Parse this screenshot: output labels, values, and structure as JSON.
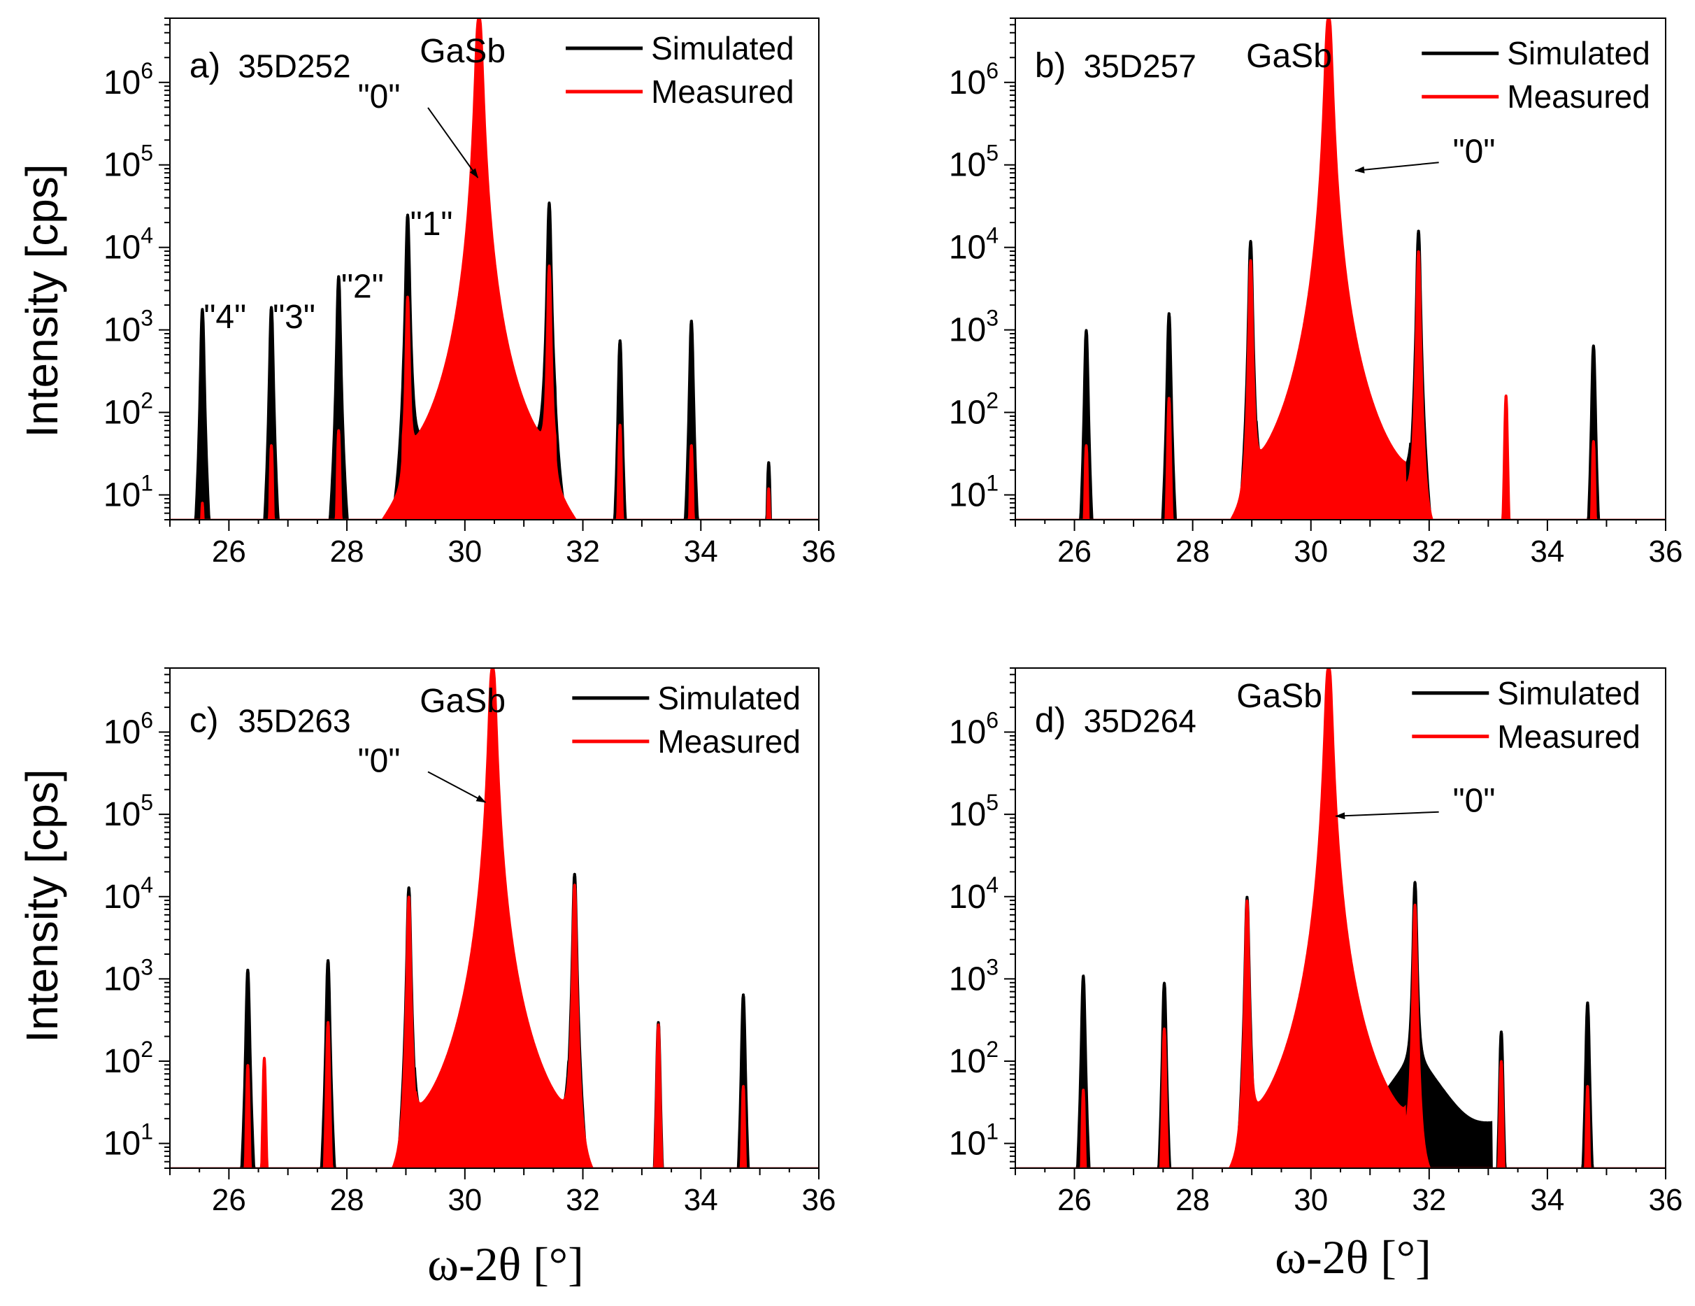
{
  "figure": {
    "ylabel": "Intensity [cps]",
    "xlabel": "ω-2θ [°]"
  },
  "colors": {
    "simulated": "#000000",
    "measured": "#ff0000"
  },
  "chart_data": [
    {
      "type": "line",
      "panel_label": "a)",
      "sample": "35D252",
      "substrate_label": "GaSb",
      "xlim": [
        25,
        36
      ],
      "ylim": [
        5,
        6000000
      ],
      "yscale": "log",
      "xticks": [
        26,
        28,
        30,
        32,
        34,
        36
      ],
      "yticks": [
        10,
        100,
        1000,
        10000,
        100000,
        1000000
      ],
      "legend": {
        "position": "top-right",
        "entries": [
          "Simulated",
          "Measured"
        ]
      },
      "baseline": 35,
      "arrow": {
        "text": "\"0\"",
        "from": [
          28.9,
          600000
        ],
        "to": [
          30.22,
          70000
        ]
      },
      "annotations": [
        {
          "text": "\"4\"",
          "x": 25.55,
          "y": 1500
        },
        {
          "text": "\"3\"",
          "x": 26.72,
          "y": 1500
        },
        {
          "text": "\"2\"",
          "x": 27.88,
          "y": 3500
        },
        {
          "text": "\"1\"",
          "x": 29.05,
          "y": 20000
        }
      ],
      "series": [
        {
          "name": "Simulated",
          "peaks": [
            [
              25.55,
              1800
            ],
            [
              26.72,
              1900
            ],
            [
              27.86,
              4500
            ],
            [
              29.03,
              25000
            ],
            [
              30.24,
              1200000
            ],
            [
              31.43,
              35000
            ],
            [
              32.63,
              750
            ],
            [
              33.84,
              1300
            ],
            [
              35.15,
              25
            ]
          ]
        },
        {
          "name": "Measured",
          "peaks": [
            [
              25.55,
              8
            ],
            [
              26.72,
              40
            ],
            [
              27.86,
              60
            ],
            [
              29.03,
              2500
            ],
            [
              30.24,
              6000000
            ],
            [
              31.43,
              6000
            ],
            [
              32.63,
              70
            ],
            [
              33.84,
              40
            ],
            [
              35.15,
              12
            ]
          ]
        }
      ]
    },
    {
      "type": "line",
      "panel_label": "b)",
      "sample": "35D257",
      "substrate_label": "GaSb",
      "xlim": [
        25,
        36
      ],
      "ylim": [
        5,
        6000000
      ],
      "yscale": "log",
      "xticks": [
        26,
        28,
        30,
        32,
        34,
        36
      ],
      "yticks": [
        10,
        100,
        1000,
        10000,
        100000,
        1000000
      ],
      "legend": {
        "position": "top-right",
        "entries": [
          "Simulated",
          "Measured"
        ]
      },
      "baseline": 18,
      "arrow": {
        "text": "\"0\"",
        "from": [
          32.4,
          130000
        ],
        "to": [
          30.75,
          85000
        ]
      },
      "annotations": [],
      "series": [
        {
          "name": "Simulated",
          "peaks": [
            [
              26.2,
              1000
            ],
            [
              27.6,
              1600
            ],
            [
              28.98,
              12000
            ],
            [
              30.38,
              120000
            ],
            [
              31.82,
              16000
            ],
            [
              33.3,
              30
            ],
            [
              34.78,
              650
            ]
          ]
        },
        {
          "name": "Measured",
          "peaks": [
            [
              26.2,
              40
            ],
            [
              27.6,
              150
            ],
            [
              28.98,
              7000
            ],
            [
              30.3,
              6000000
            ],
            [
              31.82,
              9000
            ],
            [
              33.3,
              160
            ],
            [
              34.78,
              45
            ]
          ]
        }
      ]
    },
    {
      "type": "line",
      "panel_label": "c)",
      "sample": "35D263",
      "substrate_label": "GaSb",
      "xlim": [
        25,
        36
      ],
      "ylim": [
        5,
        6000000
      ],
      "yscale": "log",
      "xticks": [
        26,
        28,
        30,
        32,
        34,
        36
      ],
      "yticks": [
        10,
        100,
        1000,
        10000,
        100000,
        1000000
      ],
      "legend": {
        "position": "top-right",
        "entries": [
          "Simulated",
          "Measured"
        ]
      },
      "baseline": 20,
      "arrow": {
        "text": "\"0\"",
        "from": [
          28.9,
          400000
        ],
        "to": [
          30.35,
          140000
        ]
      },
      "annotations": [],
      "series": [
        {
          "name": "Simulated",
          "peaks": [
            [
              26.32,
              1300
            ],
            [
              27.68,
              1700
            ],
            [
              29.05,
              13000
            ],
            [
              30.45,
              160000
            ],
            [
              31.86,
              19000
            ],
            [
              33.28,
              300
            ],
            [
              34.72,
              650
            ]
          ]
        },
        {
          "name": "Measured",
          "peaks": [
            [
              26.32,
              90
            ],
            [
              26.6,
              110
            ],
            [
              27.68,
              300
            ],
            [
              29.05,
              10000
            ],
            [
              30.47,
              6000000
            ],
            [
              31.86,
              14000
            ],
            [
              33.28,
              280
            ],
            [
              34.72,
              50
            ]
          ]
        }
      ]
    },
    {
      "type": "line",
      "panel_label": "d)",
      "sample": "35D264",
      "substrate_label": "GaSb",
      "xlim": [
        25,
        36
      ],
      "ylim": [
        5,
        6000000
      ],
      "yscale": "log",
      "xticks": [
        26,
        28,
        30,
        32,
        34,
        36
      ],
      "yticks": [
        10,
        100,
        1000,
        10000,
        100000,
        1000000
      ],
      "legend": {
        "position": "top-right",
        "entries": [
          "Simulated",
          "Measured"
        ]
      },
      "baseline": 18,
      "arrow": {
        "text": "\"0\"",
        "from": [
          32.4,
          130000
        ],
        "to": [
          30.42,
          95000
        ]
      },
      "annotations": [],
      "series": [
        {
          "name": "Simulated",
          "peaks": [
            [
              26.15,
              1100
            ],
            [
              27.52,
              900
            ],
            [
              28.92,
              10000
            ],
            [
              30.3,
              3000
            ],
            [
              31.76,
              15000
            ],
            [
              33.22,
              230
            ],
            [
              34.68,
              520
            ]
          ]
        },
        {
          "name": "Measured",
          "peaks": [
            [
              26.15,
              45
            ],
            [
              27.52,
              250
            ],
            [
              28.92,
              9000
            ],
            [
              30.3,
              6000000
            ],
            [
              31.76,
              8000
            ],
            [
              33.22,
              100
            ],
            [
              34.68,
              50
            ]
          ]
        }
      ]
    }
  ]
}
